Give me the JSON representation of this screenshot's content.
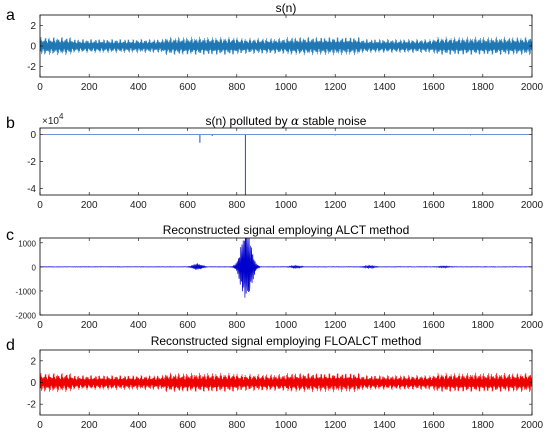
{
  "chart_data": [
    {
      "type": "line",
      "panel": "a",
      "title": "s(n)",
      "xlim": [
        0,
        2000
      ],
      "ylim": [
        -3,
        3
      ],
      "xticks": [
        "0",
        "200",
        "400",
        "600",
        "800",
        "1000",
        "1200",
        "1400",
        "1600",
        "1800",
        "2000"
      ],
      "yticks": [
        "2",
        "0",
        "-2"
      ],
      "color": "#1f77b4",
      "series": [
        {
          "x": [
            0,
            130,
            135,
            500,
            505,
            800,
            805,
            1000,
            1005,
            1300,
            1305,
            1600,
            1605,
            2000
          ],
          "amplitude": [
            0.9,
            0.9,
            0.7,
            0.7,
            0.9,
            0.9,
            0.8,
            0.8,
            0.9,
            0.9,
            0.7,
            0.7,
            0.9,
            0.9
          ]
        }
      ]
    },
    {
      "type": "line",
      "panel": "b",
      "title": "s(n) polluted by",
      "title_symbol": "α",
      "title_suffix": "stable noise",
      "exponent_label": "×10",
      "exponent_power": "4",
      "xlim": [
        0,
        2000
      ],
      "ylim": [
        -4.5,
        0.5
      ],
      "xticks": [
        "0",
        "200",
        "400",
        "600",
        "800",
        "1000",
        "1200",
        "1400",
        "1600",
        "1800",
        "2000"
      ],
      "yticks": [
        "0",
        "-2",
        "-4"
      ],
      "color": "#1f4fb4",
      "series": [
        {
          "x": [
            650,
            700,
            835,
            1200,
            1750
          ],
          "y": [
            -0.6,
            -0.1,
            -4.5,
            -0.05,
            -0.05
          ]
        }
      ]
    },
    {
      "type": "line",
      "panel": "c",
      "title": "Reconstructed signal employing ALCT method",
      "xlim": [
        0,
        2000
      ],
      "ylim": [
        -2000,
        1200
      ],
      "xticks": [
        "0",
        "200",
        "400",
        "600",
        "800",
        "1000",
        "1200",
        "1400",
        "1600",
        "1800",
        "2000"
      ],
      "yticks": [
        "1000",
        "0",
        "-1000",
        "-2000"
      ],
      "color": "#0000cc",
      "series": [
        {
          "bursts": [
            {
              "center": 640,
              "width": 35,
              "amplitude": 150
            },
            {
              "center": 838,
              "width": 40,
              "amplitude": 1700
            },
            {
              "center": 1040,
              "width": 40,
              "amplitude": 60
            },
            {
              "center": 1340,
              "width": 40,
              "amplitude": 60
            },
            {
              "center": 1640,
              "width": 40,
              "amplitude": 40
            }
          ]
        }
      ]
    },
    {
      "type": "line",
      "panel": "d",
      "title": "Reconstructed signal employing FLOALCT method",
      "xlim": [
        0,
        2000
      ],
      "ylim": [
        -3,
        3
      ],
      "xticks": [
        "0",
        "200",
        "400",
        "600",
        "800",
        "1000",
        "1200",
        "1400",
        "1600",
        "1800",
        "2000"
      ],
      "yticks": [
        "2",
        "0",
        "-2"
      ],
      "color": "#ee0000",
      "series": [
        {
          "x": [
            0,
            130,
            135,
            500,
            505,
            800,
            805,
            1000,
            1005,
            1300,
            1305,
            1600,
            1605,
            2000
          ],
          "amplitude": [
            0.9,
            0.9,
            0.7,
            0.7,
            0.9,
            0.9,
            0.8,
            0.8,
            0.9,
            0.9,
            0.7,
            0.7,
            0.9,
            0.9
          ]
        }
      ]
    }
  ]
}
